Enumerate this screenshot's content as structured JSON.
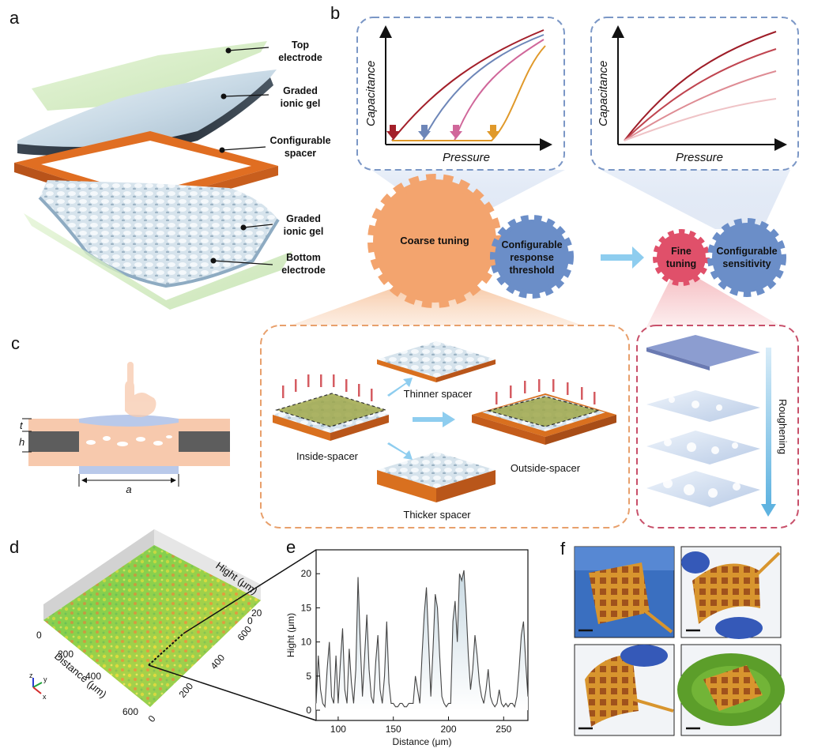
{
  "panels": {
    "a": {
      "label": "a",
      "layers": [
        "Top electrode",
        "Graded ionic gel",
        "Configurable spacer",
        "Graded ionic gel",
        "Bottom electrode"
      ],
      "layer_lines": [
        [
          "Top",
          "electrode"
        ],
        [
          "Graded",
          "ionic gel"
        ],
        [
          "Configurable",
          "spacer"
        ],
        [
          "Graded",
          "ionic gel"
        ],
        [
          "Bottom",
          "electrode"
        ]
      ]
    },
    "b": {
      "label": "b",
      "plot1": {
        "ylabel": "Capacitance",
        "xlabel": "Pressure"
      },
      "plot2": {
        "ylabel": "Capacitance",
        "xlabel": "Pressure"
      },
      "gear_coarse": "Coarse tuning",
      "gear_threshold": [
        "Configurable",
        "response",
        "threshold"
      ],
      "gear_fine": [
        "Fine",
        "tuning"
      ],
      "gear_sensitivity": [
        "Configurable",
        "sensitivity"
      ],
      "spacer_modes": {
        "inside": "Inside-spacer",
        "thinner": "Thinner spacer",
        "outside": "Outside-spacer",
        "thicker": "Thicker spacer"
      },
      "roughening": "Roughening"
    },
    "c": {
      "label": "c",
      "t": "t",
      "h": "h",
      "a": "a"
    },
    "d": {
      "label": "d",
      "z_axis_title": "Hight (μm)",
      "z_ticks": [
        "20",
        "0"
      ],
      "x_axis_title": "Distance (μm)",
      "x_ticks": [
        "0",
        "200",
        "400",
        "600"
      ],
      "y_ticks": [
        "0",
        "200",
        "400",
        "600"
      ],
      "triad": {
        "z": "z",
        "y": "y",
        "x": "x"
      }
    },
    "e": {
      "label": "e"
    },
    "f": {
      "label": "f"
    }
  },
  "chart_data": {
    "type": "area",
    "xlabel": "Distance (μm)",
    "ylabel": "Hight (μm)",
    "xlim": [
      80,
      272
    ],
    "ylim": [
      -1.5,
      23.5
    ],
    "xticks": [
      100,
      150,
      200,
      250
    ],
    "yticks": [
      0,
      5,
      10,
      15,
      20
    ],
    "x": [
      80,
      82,
      84,
      86,
      88,
      90,
      92,
      94,
      96,
      98,
      100,
      102,
      104,
      106,
      108,
      110,
      112,
      114,
      116,
      118,
      120,
      122,
      124,
      126,
      128,
      130,
      132,
      134,
      136,
      138,
      140,
      142,
      144,
      146,
      148,
      150,
      152,
      154,
      156,
      158,
      160,
      162,
      164,
      166,
      168,
      170,
      172,
      174,
      176,
      178,
      180,
      182,
      184,
      186,
      188,
      190,
      192,
      194,
      196,
      198,
      200,
      202,
      204,
      206,
      208,
      210,
      212,
      214,
      216,
      218,
      220,
      222,
      224,
      226,
      228,
      230,
      232,
      234,
      236,
      238,
      240,
      242,
      244,
      246,
      248,
      250,
      252,
      254,
      256,
      258,
      260,
      262,
      264,
      266,
      268,
      270,
      272
    ],
    "y": [
      1,
      8,
      3,
      1,
      0.5,
      6,
      10,
      2,
      1,
      8,
      1,
      7,
      12,
      3,
      1,
      9,
      4,
      1,
      6,
      19.5,
      10,
      2,
      8,
      14,
      6,
      2,
      1,
      7,
      11,
      3,
      1,
      5,
      13,
      4,
      1,
      1,
      0.5,
      0.5,
      1,
      1,
      0.5,
      0.5,
      1,
      1,
      1,
      5,
      3,
      1,
      8,
      14,
      18,
      10,
      2,
      9,
      17,
      15,
      8,
      2,
      1,
      0.5,
      1,
      1,
      13,
      16,
      10,
      20,
      19,
      20.5,
      15,
      8,
      3,
      6,
      11,
      8,
      4,
      2,
      1,
      3,
      6,
      2,
      1,
      0.5,
      1,
      3,
      1,
      0.5,
      1,
      0.5,
      1,
      1,
      0.5,
      2,
      6,
      11,
      13,
      7,
      2
    ]
  }
}
